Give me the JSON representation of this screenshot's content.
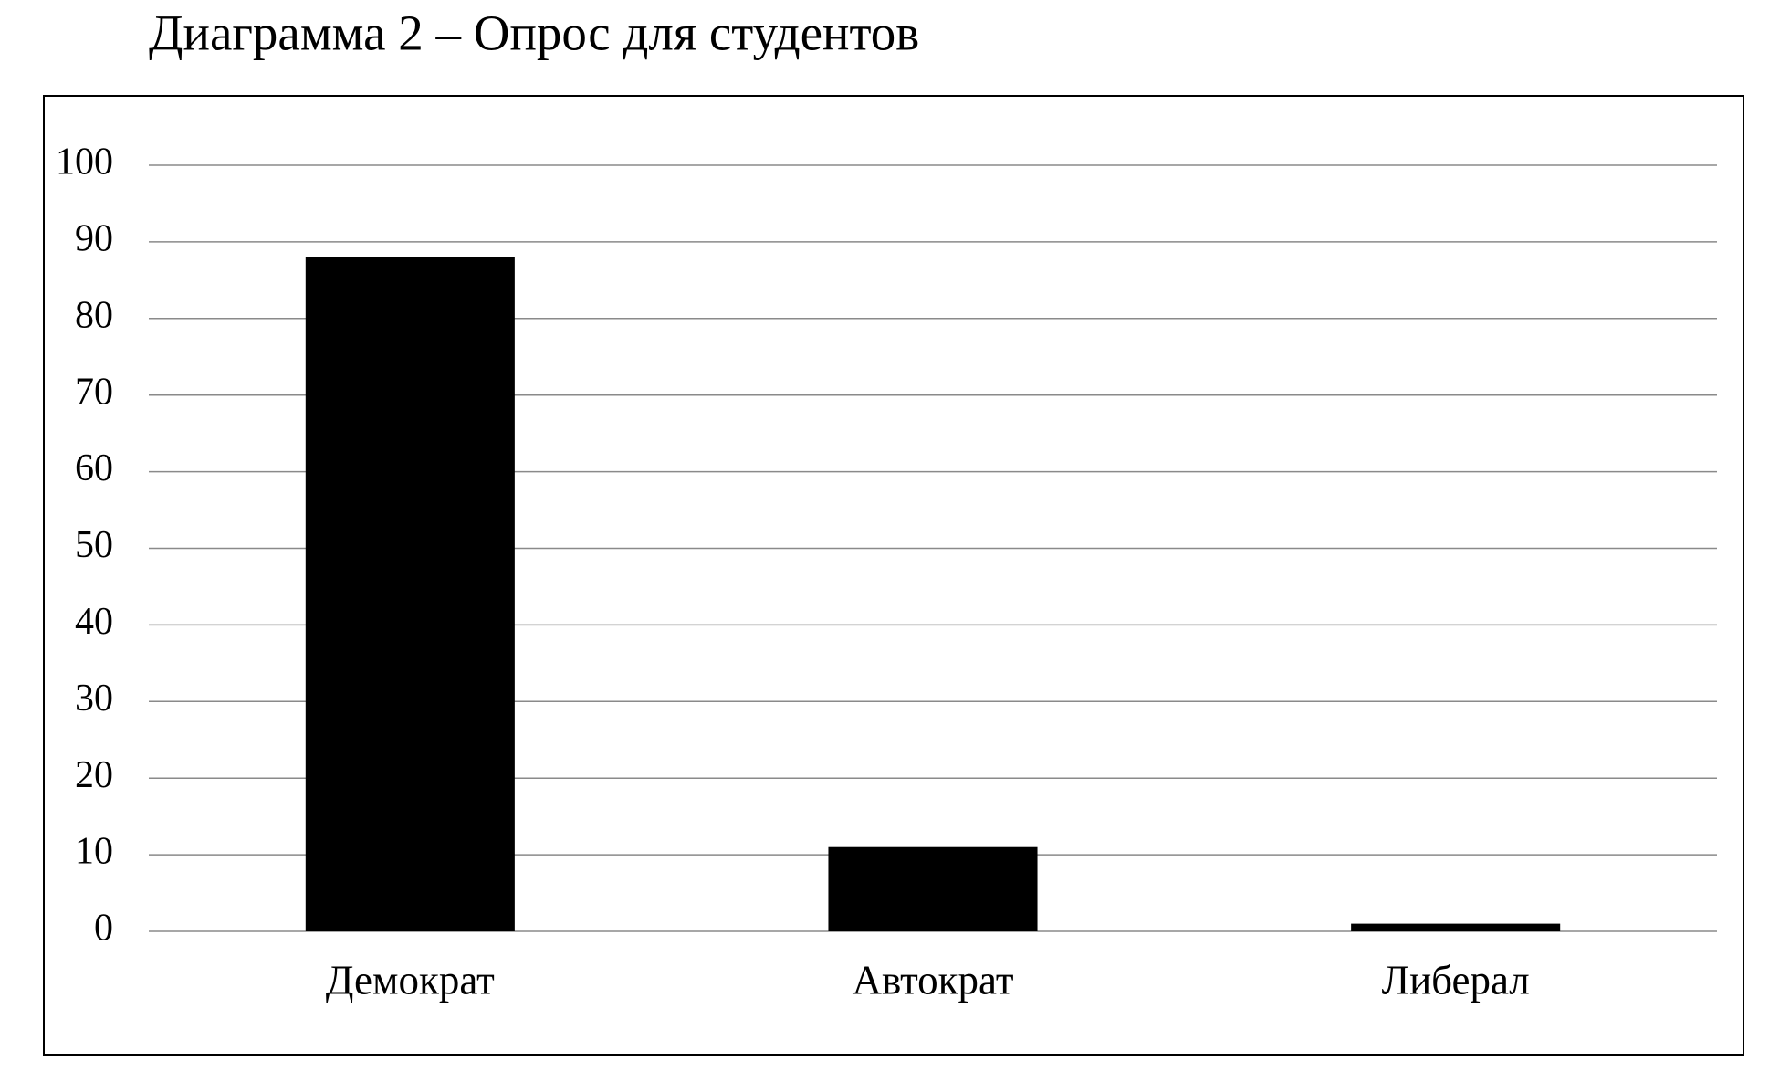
{
  "chart_data": {
    "type": "bar",
    "title": "Диаграмма 2 – Опрос для студентов",
    "categories": [
      "Демократ",
      "Автократ",
      "Либерал"
    ],
    "values": [
      88,
      11,
      1
    ],
    "color": "#000000",
    "ylim": [
      0,
      100
    ],
    "yticks": [
      0,
      10,
      20,
      30,
      40,
      50,
      60,
      70,
      80,
      90,
      100
    ],
    "grid": true
  }
}
